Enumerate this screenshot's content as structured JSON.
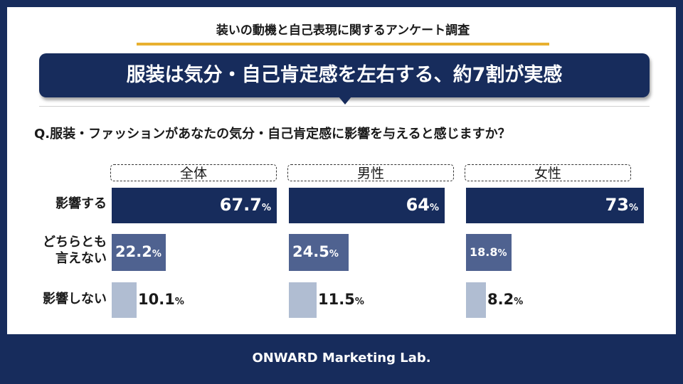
{
  "survey_title": "装いの動機と自己表現に関するアンケート調査",
  "headline": "服装は気分・自己肯定感を左右する、約7割が実感",
  "question": "Q.服装・ファッションがあなたの気分・自己肯定感に影響を与えると感じますか？",
  "footer": "ONWARD Marketing Lab.",
  "colors": {
    "navy": "#172C5C",
    "mid": "#4F6290",
    "light": "#B0BDD2",
    "accent": "#E8B030"
  },
  "chart_data": {
    "type": "bar",
    "categories": [
      "影響する",
      "どちらとも\n言えない",
      "影響しない"
    ],
    "category_lines": [
      [
        "影響する"
      ],
      [
        "どちらとも",
        "言えない"
      ],
      [
        "影響しない"
      ]
    ],
    "series": [
      {
        "name": "全体",
        "values": [
          67.7,
          22.2,
          10.1
        ],
        "labels": [
          "67.7",
          "22.2",
          "10.1"
        ]
      },
      {
        "name": "男性",
        "values": [
          64,
          24.5,
          11.5
        ],
        "labels": [
          "64",
          "24.5",
          "11.5"
        ]
      },
      {
        "name": "女性",
        "values": [
          73,
          18.8,
          8.2
        ],
        "labels": [
          "73",
          "18.8",
          "8.2"
        ]
      }
    ],
    "unit": "%",
    "xlim": [
      0,
      100
    ],
    "orientation": "horizontal"
  }
}
